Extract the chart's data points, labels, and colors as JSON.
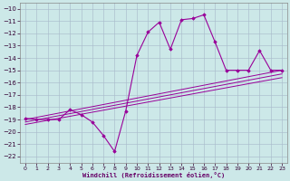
{
  "x": [
    0,
    1,
    2,
    3,
    4,
    5,
    6,
    7,
    8,
    9,
    10,
    11,
    12,
    13,
    14,
    15,
    16,
    17,
    18,
    19,
    20,
    21,
    22,
    23
  ],
  "y_main": [
    -18.9,
    -19.0,
    -19.0,
    -19.0,
    -18.2,
    -18.6,
    -19.2,
    -20.3,
    -21.6,
    -18.3,
    -13.8,
    -11.9,
    -11.1,
    -13.3,
    -10.9,
    -10.8,
    -10.5,
    -12.7,
    -15.0,
    -15.0,
    -15.0,
    -13.4,
    -15.0,
    -15.0
  ],
  "reg_lines": [
    {
      "x0": 0,
      "y0": -19.0,
      "x1": 23,
      "y1": -15.0
    },
    {
      "x0": 0,
      "y0": -19.2,
      "x1": 23,
      "y1": -15.3
    },
    {
      "x0": 0,
      "y0": -19.4,
      "x1": 23,
      "y1": -15.6
    }
  ],
  "line_color": "#990099",
  "bg_color": "#cce8e8",
  "grid_color": "#aabccc",
  "xlabel": "Windchill (Refroidissement éolien,°C)",
  "ylim": [
    -22.5,
    -9.5
  ],
  "xlim": [
    -0.5,
    23.5
  ],
  "yticks": [
    -22,
    -21,
    -20,
    -19,
    -18,
    -17,
    -16,
    -15,
    -14,
    -13,
    -12,
    -11,
    -10
  ],
  "xticks": [
    0,
    1,
    2,
    3,
    4,
    5,
    6,
    7,
    8,
    9,
    10,
    11,
    12,
    13,
    14,
    15,
    16,
    17,
    18,
    19,
    20,
    21,
    22,
    23
  ]
}
